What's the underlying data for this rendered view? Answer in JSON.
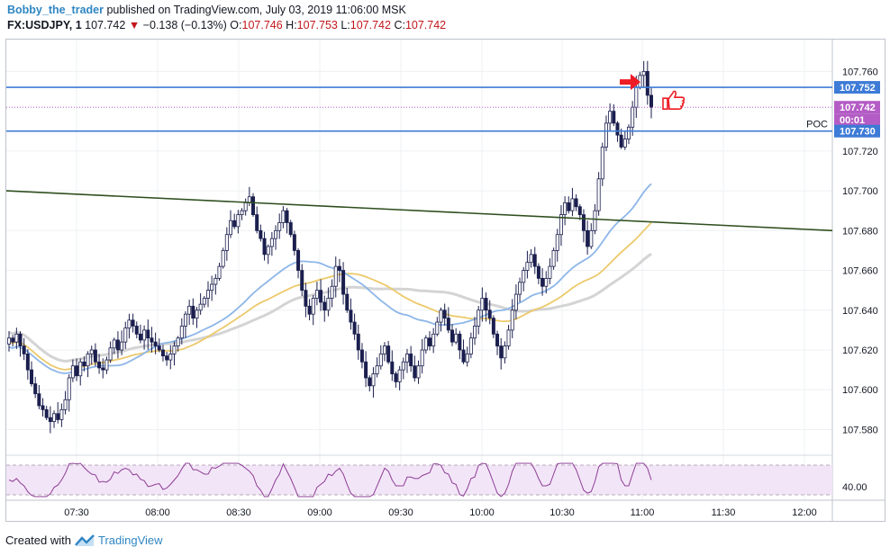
{
  "header": {
    "author": "Bobby_the_trader",
    "published_text": "published on TradingView.com, July 03, 2019 11:06:00 MSK",
    "symbol": "FX:USDJPY, 1",
    "last": "107.742",
    "change_arrow": "▼",
    "change": "−0.138 (−0.13%)",
    "o_label": "O:",
    "o": "107.746",
    "h_label": "H:",
    "h": "107.753",
    "l_label": "L:",
    "l": "107.742",
    "c_label": "C:",
    "c": "107.742"
  },
  "footer": {
    "created_with": "Created with",
    "brand": "TradingView"
  },
  "colors": {
    "up_candle": "#ffffff",
    "down_candle": "#1b1f4e",
    "wick": "#1b1f4e",
    "level_line": "#3d7bd6",
    "trend_line": "#2f4f1f",
    "ma_blue": "#8db6e8",
    "ma_yellow": "#ecc96b",
    "ma_gray": "#d4d4d4",
    "price_label": "#b45cc5",
    "rsi_line": "#8c3e94",
    "rsi_band": "#f3e5f8",
    "arrow": "#ee1c25",
    "thumb": "#ee1c25"
  },
  "chart_data": {
    "type": "candlestick",
    "x_ticks": [
      "07:30",
      "08:00",
      "08:30",
      "09:00",
      "09:30",
      "10:00",
      "10:30",
      "11:00",
      "11:30",
      "12:00"
    ],
    "y_ticks": [
      "107.760",
      "107.720",
      "107.700",
      "107.680",
      "107.660",
      "107.640",
      "107.620",
      "107.600",
      "107.580"
    ],
    "ylim": [
      107.568,
      107.776
    ],
    "price_labels": [
      {
        "name": "upper-level",
        "text": "107.752",
        "value": 107.752
      },
      {
        "name": "last-price",
        "text": "107.742",
        "value": 107.742
      },
      {
        "name": "countdown",
        "text": "00:01",
        "value": 107.737
      },
      {
        "name": "lower-level",
        "text": "107.730",
        "value": 107.73
      }
    ],
    "poc_label": "POC",
    "levels": [
      107.752,
      107.73
    ],
    "last_price": 107.742,
    "trendline": {
      "start_value": 107.7,
      "end_value": 107.68
    },
    "close_series": [
      107.626,
      107.624,
      107.628,
      107.622,
      107.618,
      107.61,
      107.603,
      107.598,
      107.592,
      107.59,
      107.586,
      107.584,
      107.588,
      107.585,
      107.59,
      107.595,
      107.606,
      107.612,
      107.607,
      107.614,
      107.612,
      107.618,
      107.62,
      107.614,
      107.611,
      107.61,
      107.615,
      107.621,
      107.625,
      107.62,
      107.624,
      107.631,
      107.635,
      107.632,
      107.628,
      107.625,
      107.63,
      107.626,
      107.624,
      107.622,
      107.62,
      107.617,
      107.615,
      107.618,
      107.622,
      107.626,
      107.632,
      107.638,
      107.642,
      107.636,
      107.64,
      107.643,
      107.646,
      107.65,
      107.653,
      107.656,
      107.662,
      107.67,
      107.678,
      107.685,
      107.682,
      107.688,
      107.69,
      107.694,
      107.697,
      107.688,
      107.68,
      107.676,
      107.668,
      107.672,
      107.676,
      107.68,
      107.684,
      107.69,
      107.684,
      107.678,
      107.67,
      107.66,
      107.65,
      107.642,
      107.638,
      107.646,
      107.65,
      107.644,
      107.64,
      107.646,
      107.652,
      107.662,
      107.66,
      107.648,
      107.64,
      107.634,
      107.628,
      107.62,
      107.614,
      107.606,
      107.602,
      107.608,
      107.612,
      107.618,
      107.622,
      107.614,
      107.608,
      107.604,
      107.61,
      107.614,
      107.618,
      107.612,
      107.606,
      107.612,
      107.62,
      107.626,
      107.622,
      107.628,
      107.634,
      107.64,
      107.636,
      107.63,
      107.624,
      107.628,
      107.62,
      107.614,
      107.618,
      107.626,
      107.632,
      107.64,
      107.646,
      107.64,
      107.636,
      107.628,
      107.622,
      107.616,
      107.622,
      107.63,
      107.64,
      107.648,
      107.654,
      107.66,
      107.664,
      107.668,
      107.662,
      107.656,
      107.652,
      107.656,
      107.662,
      107.67,
      107.678,
      107.688,
      107.694,
      107.69,
      107.696,
      107.692,
      107.688,
      107.68,
      107.672,
      107.68,
      107.69,
      107.706,
      107.722,
      107.734,
      107.74,
      107.734,
      107.728,
      107.722,
      107.726,
      107.732,
      107.742,
      107.752,
      107.758,
      107.76,
      107.748,
      107.742
    ],
    "ma_blue": {
      "start": 107.613,
      "end": 107.682
    },
    "ma_yellow": {
      "start": 107.62,
      "end": 107.67
    },
    "ma_gray": {
      "start": 107.634,
      "end": 107.663
    },
    "rsi": {
      "tick": "40.00",
      "upper_band": 70,
      "lower_band": 30
    }
  }
}
